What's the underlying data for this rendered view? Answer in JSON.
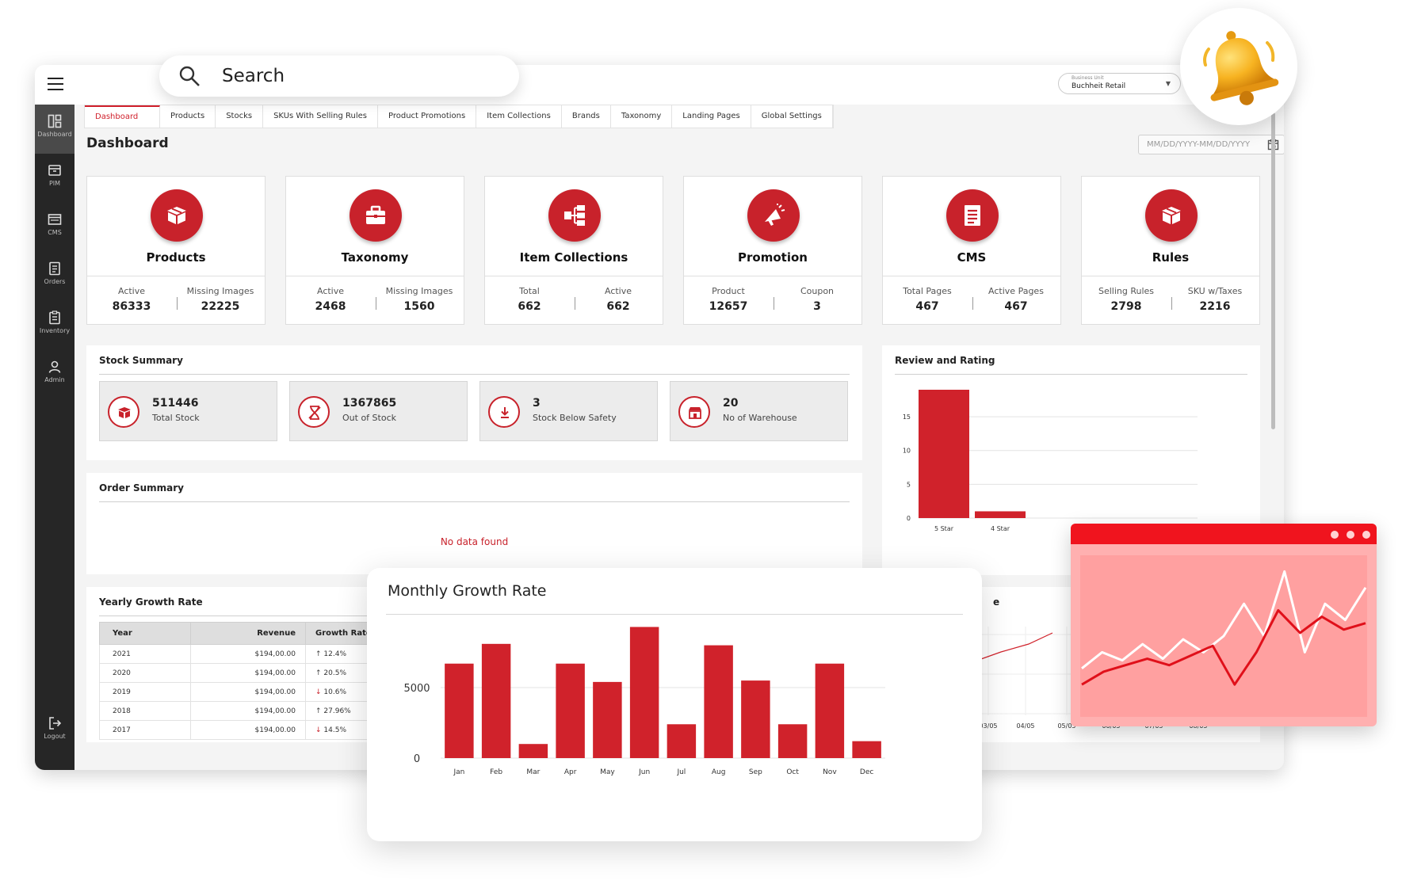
{
  "search": {
    "placeholder": "Search"
  },
  "business_unit": {
    "caption": "Business Unit",
    "value": "Buchheit Retail"
  },
  "sidebar": {
    "items": [
      {
        "label": "Dashboard",
        "icon": "dashboard-icon"
      },
      {
        "label": "PIM",
        "icon": "box-icon"
      },
      {
        "label": "CMS",
        "icon": "browser-icon"
      },
      {
        "label": "Orders",
        "icon": "document-icon"
      },
      {
        "label": "Inventory",
        "icon": "clipboard-icon"
      },
      {
        "label": "Admin",
        "icon": "user-icon"
      },
      {
        "label": "Logout",
        "icon": "logout-icon"
      }
    ]
  },
  "tabs": [
    "Dashboard",
    "Products",
    "Stocks",
    "SKUs With Selling Rules",
    "Product Promotions",
    "Item Collections",
    "Brands",
    "Taxonomy",
    "Landing Pages",
    "Global Settings"
  ],
  "page": {
    "title": "Dashboard",
    "date_placeholder": "MM/DD/YYYY-MM/DD/YYYY"
  },
  "cards": [
    {
      "title": "Products",
      "icon": "box-icon",
      "stats": [
        {
          "label": "Active",
          "value": "86333"
        },
        {
          "label": "Missing Images",
          "value": "22225"
        }
      ]
    },
    {
      "title": "Taxonomy",
      "icon": "briefcase-icon",
      "stats": [
        {
          "label": "Active",
          "value": "2468"
        },
        {
          "label": "Missing Images",
          "value": "1560"
        }
      ]
    },
    {
      "title": "Item Collections",
      "icon": "hierarchy-icon",
      "stats": [
        {
          "label": "Total",
          "value": "662"
        },
        {
          "label": "Active",
          "value": "662"
        }
      ]
    },
    {
      "title": "Promotion",
      "icon": "megaphone-icon",
      "stats": [
        {
          "label": "Product",
          "value": "12657"
        },
        {
          "label": "Coupon",
          "value": "3"
        }
      ]
    },
    {
      "title": "CMS",
      "icon": "page-icon",
      "stats": [
        {
          "label": "Total Pages",
          "value": "467"
        },
        {
          "label": "Active Pages",
          "value": "467"
        }
      ]
    },
    {
      "title": "Rules",
      "icon": "box-icon",
      "stats": [
        {
          "label": "Selling Rules",
          "value": "2798"
        },
        {
          "label": "SKU w/Taxes",
          "value": "2216"
        }
      ]
    }
  ],
  "stock_summary": {
    "title": "Stock Summary",
    "items": [
      {
        "value": "511446",
        "label": "Total Stock",
        "icon": "box-icon"
      },
      {
        "value": "1367865",
        "label": "Out of Stock",
        "icon": "hourglass-icon"
      },
      {
        "value": "3",
        "label": "Stock Below Safety",
        "icon": "download-icon"
      },
      {
        "value": "20",
        "label": "No of Warehouse",
        "icon": "store-icon"
      }
    ]
  },
  "order_summary": {
    "title": "Order Summary",
    "empty_text": "No data found"
  },
  "yearly_growth": {
    "title": "Yearly Growth Rate",
    "columns": [
      "Year",
      "Revenue",
      "Growth Rate"
    ],
    "rows": [
      {
        "year": "2021",
        "revenue": "$194,00.00",
        "growth": "12.4%",
        "direction": "up"
      },
      {
        "year": "2020",
        "revenue": "$194,00.00",
        "growth": "20.5%",
        "direction": "up"
      },
      {
        "year": "2019",
        "revenue": "$194,00.00",
        "growth": "10.6%",
        "direction": "down"
      },
      {
        "year": "2018",
        "revenue": "$194,00.00",
        "growth": "27.96%",
        "direction": "up"
      },
      {
        "year": "2017",
        "revenue": "$194,00.00",
        "growth": "14.5%",
        "direction": "down"
      }
    ]
  },
  "partial_panel": {
    "title_fragment": "e"
  },
  "colors": {
    "accent": "#c8222b",
    "sidebar": "#262626",
    "bar": "#d0222b",
    "browser_bar": "#f0141e"
  },
  "chart_data": [
    {
      "type": "bar",
      "title": "Review and Rating",
      "categories": [
        "5 Star",
        "4 Star"
      ],
      "values": [
        19,
        1
      ],
      "ylim": [
        0,
        19
      ],
      "yticks": [
        0,
        5,
        10,
        15
      ],
      "grid": true
    },
    {
      "type": "bar",
      "title": "Monthly Growth Rate",
      "categories": [
        "Jan",
        "Feb",
        "Mar",
        "Apr",
        "May",
        "Jun",
        "Jul",
        "Aug",
        "Sep",
        "Oct",
        "Nov",
        "Dec"
      ],
      "values": [
        6700,
        8100,
        1000,
        6700,
        5400,
        9300,
        2400,
        8000,
        5500,
        2400,
        6700,
        1200
      ],
      "ylim": [
        0,
        10000
      ],
      "yticks": [
        0,
        5000
      ],
      "grid": true
    },
    {
      "type": "line",
      "title": "",
      "categories": [
        "03/05",
        "04/05",
        "05/05",
        "06/05",
        "07/05",
        "08/05"
      ],
      "visible_fragment": true
    },
    {
      "type": "line",
      "title": "",
      "decorative": true,
      "series": [
        {
          "name": "",
          "color": "#ffffff",
          "values": [
            3,
            4,
            3.5,
            4.5,
            3.6,
            4.8,
            4,
            5,
            7,
            5,
            9,
            4,
            7,
            6,
            8
          ]
        },
        {
          "name": "",
          "color": "#e0101a",
          "values": [
            2,
            2.8,
            3.2,
            3.6,
            3.2,
            3.8,
            4.4,
            2,
            4,
            6.6,
            5.2,
            6.2,
            5.4,
            5.8
          ]
        }
      ]
    }
  ]
}
